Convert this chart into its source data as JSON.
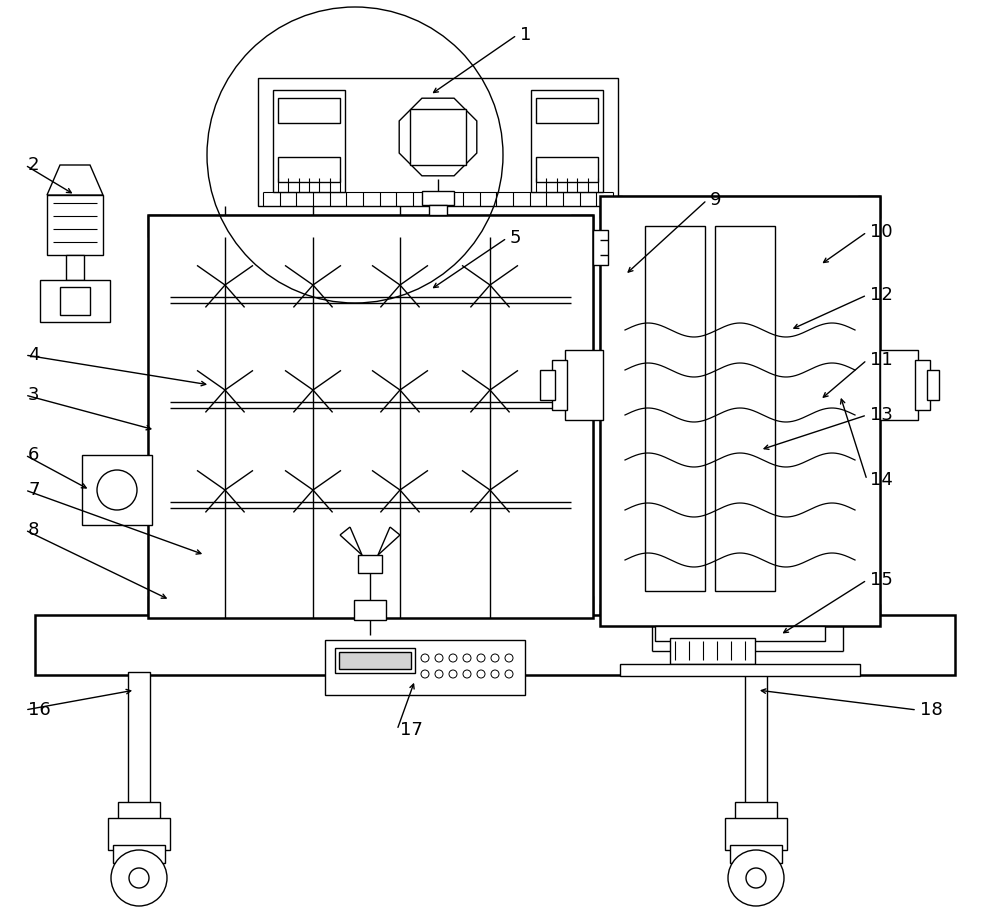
{
  "bg_color": "#ffffff",
  "lw": 1.0,
  "lw2": 1.8,
  "figw": 10.0,
  "figh": 9.1
}
